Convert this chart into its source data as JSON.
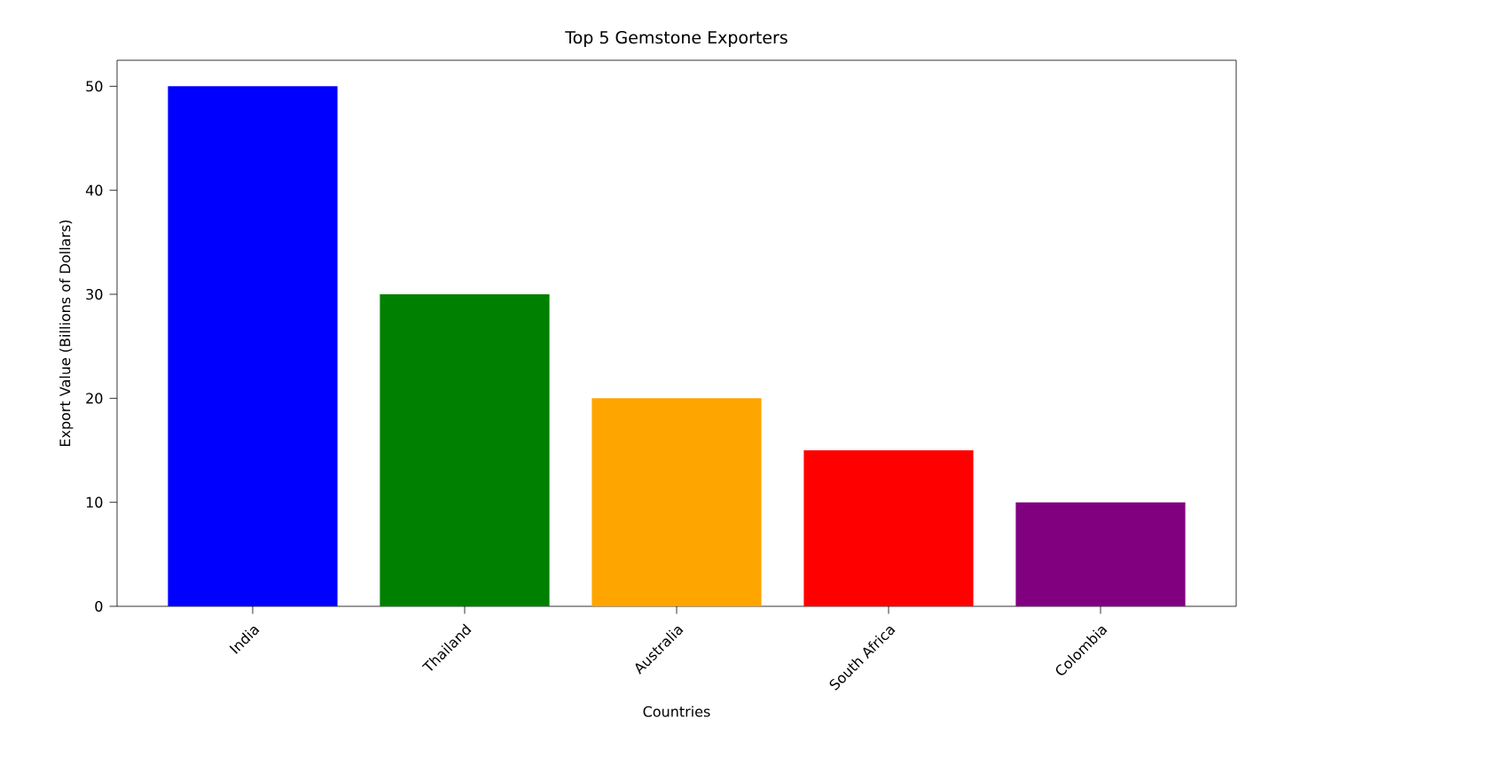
{
  "chart_data": {
    "type": "bar",
    "title": "Top 5 Gemstone Exporters",
    "xlabel": "Countries",
    "ylabel": "Export Value (Billions of Dollars)",
    "categories": [
      "India",
      "Thailand",
      "Australia",
      "South Africa",
      "Colombia"
    ],
    "values": [
      50,
      30,
      20,
      15,
      10
    ],
    "colors": [
      "#0000ff",
      "#008000",
      "#ffa500",
      "#ff0000",
      "#800080"
    ],
    "ylim": [
      0,
      52.5
    ],
    "yticks": [
      0,
      10,
      20,
      30,
      40,
      50
    ]
  }
}
